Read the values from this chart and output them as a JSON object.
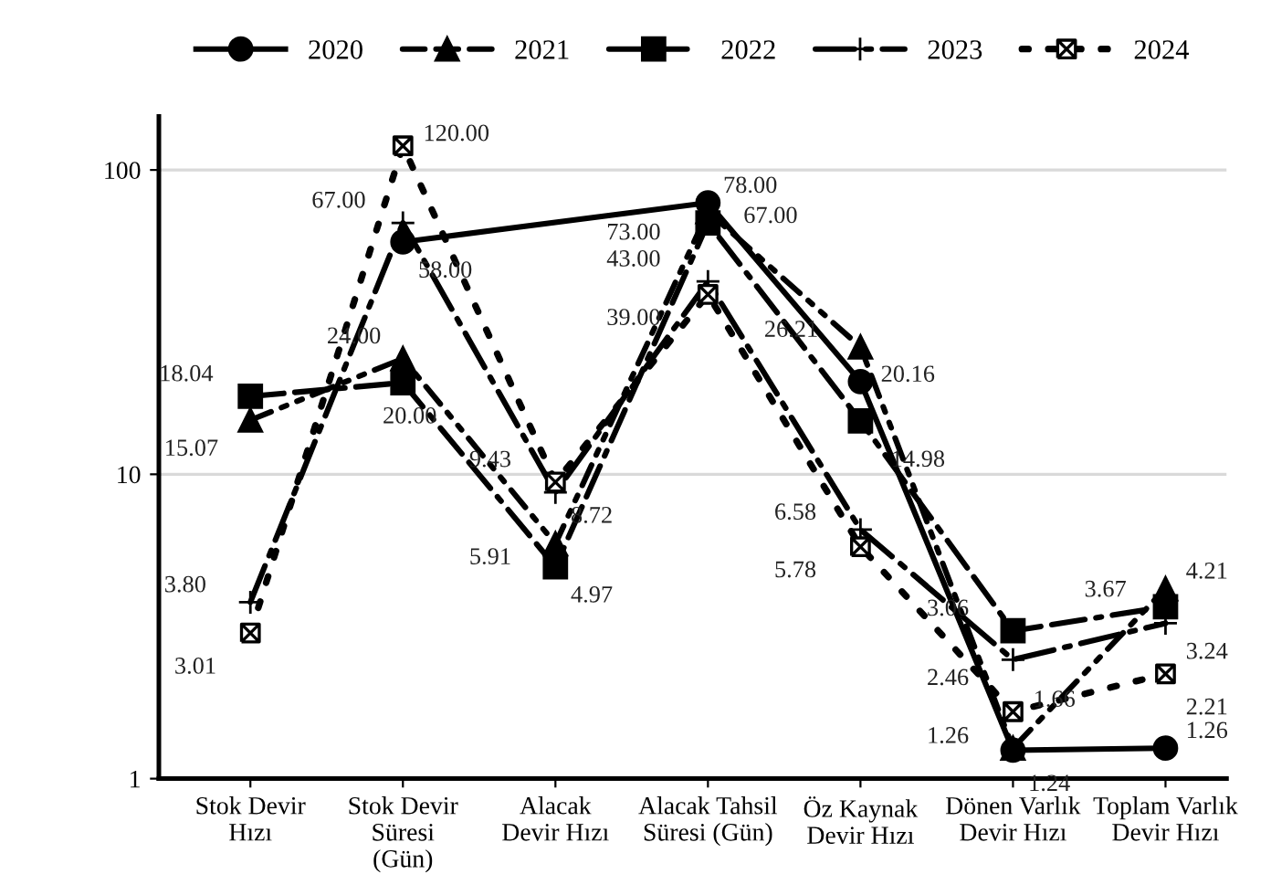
{
  "chart_data": {
    "type": "line",
    "categories": [
      "Stok Devir\nHızı",
      "Stok Devir\nSüresi\n(Gün)",
      "Alacak\nDevir Hızı",
      "Alacak Tahsil\nSüresi (Gün)",
      "Öz Kaynak\nDevir Hızı",
      "Dönen Varlık\nDevir Hızı",
      "Toplam Varlık\nDevir Hızı"
    ],
    "series": [
      {
        "name": "2020",
        "color": "#000000",
        "marker": "circle",
        "line_style": "solid",
        "values": [
          null,
          58.0,
          null,
          78.0,
          20.16,
          1.24,
          1.26
        ],
        "value_labels": [
          null,
          "58.00",
          null,
          "78.00",
          "20.16",
          "1.24",
          "1.26"
        ]
      },
      {
        "name": "2021",
        "color": "#000000",
        "marker": "triangle",
        "line_style": "dashed",
        "values": [
          15.07,
          24.0,
          5.91,
          73.0,
          26.21,
          1.26,
          4.21
        ],
        "value_labels": [
          "15.07",
          "24.00",
          "5.91",
          "73.00",
          "26.21",
          "1.26",
          "4.21"
        ]
      },
      {
        "name": "2022",
        "color": "#000000",
        "marker": "square",
        "line_style": "dashed",
        "values": [
          18.04,
          20.0,
          4.97,
          67.0,
          14.98,
          3.06,
          3.67
        ],
        "value_labels": [
          "18.04",
          "20.00",
          "4.97",
          "67.00",
          "14.98",
          "3.06",
          "3.67"
        ]
      },
      {
        "name": "2023",
        "color": "#000000",
        "marker": "cross",
        "line_style": "dashed",
        "values": [
          3.8,
          67.0,
          8.72,
          43.0,
          6.58,
          2.46,
          3.24
        ],
        "value_labels": [
          "3.80",
          "67.00",
          "8.72",
          "43.00",
          "6.58",
          "2.46",
          "3.24"
        ]
      },
      {
        "name": "2024",
        "color": "#000000",
        "marker": "cross",
        "line_style": "dotted",
        "values": [
          3.01,
          120.0,
          9.43,
          39.0,
          5.78,
          1.66,
          2.21
        ],
        "value_labels": [
          "3.01",
          "120.00",
          "9.43",
          "39.00",
          "5.78",
          "1.66",
          "2.21"
        ]
      }
    ],
    "log": "y",
    "ylim": [
      1,
      150
    ],
    "yticks": [
      1,
      10,
      100
    ],
    "grid": "y",
    "legend": "top"
  }
}
